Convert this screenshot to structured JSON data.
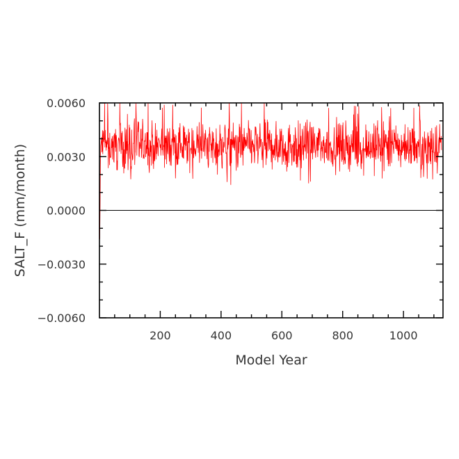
{
  "chart_data": {
    "type": "line",
    "title": "",
    "xlabel": "Model Year",
    "ylabel": "SALT_F (mm/month)",
    "xlim": [
      0,
      1130
    ],
    "ylim": [
      -0.006,
      0.006
    ],
    "x_ticks": [
      200,
      400,
      600,
      800,
      1000
    ],
    "x_tick_labels": [
      "200",
      "400",
      "600",
      "800",
      "1000"
    ],
    "y_ticks": [
      -0.006,
      -0.003,
      0,
      0.003,
      0.006
    ],
    "y_tick_labels": [
      "−0.0060",
      "−0.0030",
      "0.0000",
      "0.0030",
      "0.0060"
    ],
    "reference_line": {
      "y": 0,
      "color": "#000000"
    },
    "grid": false,
    "series": [
      {
        "color": "#ff0000",
        "x_start": 1,
        "x_step": 1,
        "initial_values": [
          -0.0016,
          0.0001,
          0.0025,
          0.0036
        ],
        "mean": 0.0036,
        "typical_min": 0.002,
        "typical_max": 0.0055,
        "peak_max": 0.0061,
        "trough_min": 0.0014,
        "n_points": 1125
      }
    ]
  }
}
